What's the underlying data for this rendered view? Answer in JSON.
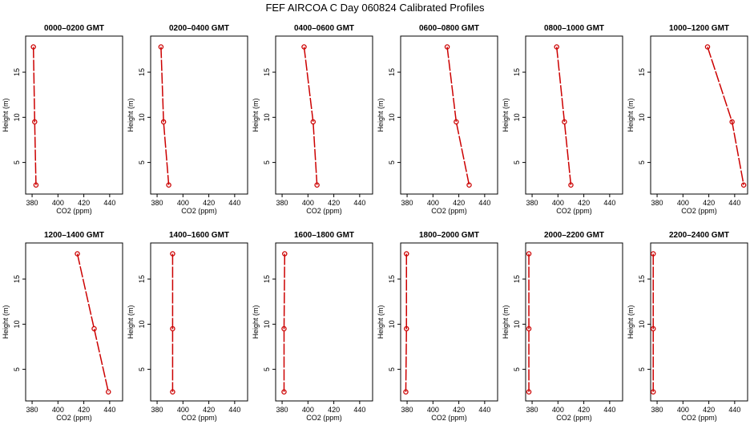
{
  "title": "FEF AIRCOA C  Day 060824  Calibrated Profiles",
  "colors": {
    "profile": "#cc0000",
    "axis": "#000000"
  },
  "chart_data": [
    {
      "type": "line",
      "title": "0000–0200 GMT",
      "xlabel": "CO2 (ppm)",
      "ylabel": "Height (m)",
      "xlim": [
        375,
        450
      ],
      "ylim": [
        1.5,
        19
      ],
      "xticks": [
        "380",
        "400",
        "420",
        "440"
      ],
      "yticks": [
        "5",
        "10",
        "15"
      ],
      "series": [
        {
          "x": [
            381,
            382,
            383
          ],
          "y": [
            17.8,
            9.5,
            2.5
          ]
        }
      ]
    },
    {
      "type": "line",
      "title": "0200–0400 GMT",
      "xlabel": "CO2 (ppm)",
      "ylabel": "Height (m)",
      "xlim": [
        375,
        450
      ],
      "ylim": [
        1.5,
        19
      ],
      "xticks": [
        "380",
        "400",
        "420",
        "440"
      ],
      "yticks": [
        "5",
        "10",
        "15"
      ],
      "series": [
        {
          "x": [
            383,
            385,
            389
          ],
          "y": [
            17.8,
            9.5,
            2.5
          ]
        }
      ]
    },
    {
      "type": "line",
      "title": "0400–0600 GMT",
      "xlabel": "CO2 (ppm)",
      "ylabel": "Height (m)",
      "xlim": [
        375,
        450
      ],
      "ylim": [
        1.5,
        19
      ],
      "xticks": [
        "380",
        "400",
        "420",
        "440"
      ],
      "yticks": [
        "5",
        "10",
        "15"
      ],
      "series": [
        {
          "x": [
            397,
            404,
            407
          ],
          "y": [
            17.8,
            9.5,
            2.5
          ]
        }
      ]
    },
    {
      "type": "line",
      "title": "0600–0800 GMT",
      "xlabel": "CO2 (ppm)",
      "ylabel": "Height (m)",
      "xlim": [
        375,
        450
      ],
      "ylim": [
        1.5,
        19
      ],
      "xticks": [
        "380",
        "400",
        "420",
        "440"
      ],
      "yticks": [
        "5",
        "10",
        "15"
      ],
      "series": [
        {
          "x": [
            411,
            418,
            428
          ],
          "y": [
            17.8,
            9.5,
            2.5
          ]
        }
      ]
    },
    {
      "type": "line",
      "title": "0800–1000 GMT",
      "xlabel": "CO2 (ppm)",
      "ylabel": "Height (m)",
      "xlim": [
        375,
        450
      ],
      "ylim": [
        1.5,
        19
      ],
      "xticks": [
        "380",
        "400",
        "420",
        "440"
      ],
      "yticks": [
        "5",
        "10",
        "15"
      ],
      "series": [
        {
          "x": [
            399,
            405,
            410
          ],
          "y": [
            17.8,
            9.5,
            2.5
          ]
        }
      ]
    },
    {
      "type": "line",
      "title": "1000–1200 GMT",
      "xlabel": "CO2 (ppm)",
      "ylabel": "Height (m)",
      "xlim": [
        375,
        450
      ],
      "ylim": [
        1.5,
        19
      ],
      "xticks": [
        "380",
        "400",
        "420",
        "440"
      ],
      "yticks": [
        "5",
        "10",
        "15"
      ],
      "series": [
        {
          "x": [
            419,
            438,
            447
          ],
          "y": [
            17.8,
            9.5,
            2.5
          ]
        }
      ]
    },
    {
      "type": "line",
      "title": "1200–1400 GMT",
      "xlabel": "CO2 (ppm)",
      "ylabel": "Height (m)",
      "xlim": [
        375,
        450
      ],
      "ylim": [
        1.5,
        19
      ],
      "xticks": [
        "380",
        "400",
        "420",
        "440"
      ],
      "yticks": [
        "5",
        "10",
        "15"
      ],
      "series": [
        {
          "x": [
            415,
            428,
            439
          ],
          "y": [
            17.8,
            9.5,
            2.5
          ]
        }
      ]
    },
    {
      "type": "line",
      "title": "1400–1600 GMT",
      "xlabel": "CO2 (ppm)",
      "ylabel": "Height (m)",
      "xlim": [
        375,
        450
      ],
      "ylim": [
        1.5,
        19
      ],
      "xticks": [
        "380",
        "400",
        "420",
        "440"
      ],
      "yticks": [
        "5",
        "10",
        "15"
      ],
      "series": [
        {
          "x": [
            392,
            392,
            392
          ],
          "y": [
            17.8,
            9.5,
            2.5
          ]
        }
      ]
    },
    {
      "type": "line",
      "title": "1600–1800 GMT",
      "xlabel": "CO2 (ppm)",
      "ylabel": "Height (m)",
      "xlim": [
        375,
        450
      ],
      "ylim": [
        1.5,
        19
      ],
      "xticks": [
        "380",
        "400",
        "420",
        "440"
      ],
      "yticks": [
        "5",
        "10",
        "15"
      ],
      "series": [
        {
          "x": [
            382,
            381.5,
            381.5
          ],
          "y": [
            17.8,
            9.5,
            2.5
          ]
        }
      ]
    },
    {
      "type": "line",
      "title": "1800–2000 GMT",
      "xlabel": "CO2 (ppm)",
      "ylabel": "Height (m)",
      "xlim": [
        375,
        450
      ],
      "ylim": [
        1.5,
        19
      ],
      "xticks": [
        "380",
        "400",
        "420",
        "440"
      ],
      "yticks": [
        "5",
        "10",
        "15"
      ],
      "series": [
        {
          "x": [
            379.5,
            379.5,
            379
          ],
          "y": [
            17.8,
            9.5,
            2.5
          ]
        }
      ]
    },
    {
      "type": "line",
      "title": "2000–2200 GMT",
      "xlabel": "CO2 (ppm)",
      "ylabel": "Height (m)",
      "xlim": [
        375,
        450
      ],
      "ylim": [
        1.5,
        19
      ],
      "xticks": [
        "380",
        "400",
        "420",
        "440"
      ],
      "yticks": [
        "5",
        "10",
        "15"
      ],
      "series": [
        {
          "x": [
            377.5,
            377.5,
            377.5
          ],
          "y": [
            17.8,
            9.5,
            2.5
          ]
        }
      ]
    },
    {
      "type": "line",
      "title": "2200–2400 GMT",
      "xlabel": "CO2 (ppm)",
      "ylabel": "Height (m)",
      "xlim": [
        375,
        450
      ],
      "ylim": [
        1.5,
        19
      ],
      "xticks": [
        "380",
        "400",
        "420",
        "440"
      ],
      "yticks": [
        "5",
        "10",
        "15"
      ],
      "series": [
        {
          "x": [
            377,
            377,
            377
          ],
          "y": [
            17.8,
            9.5,
            2.5
          ]
        }
      ]
    }
  ]
}
